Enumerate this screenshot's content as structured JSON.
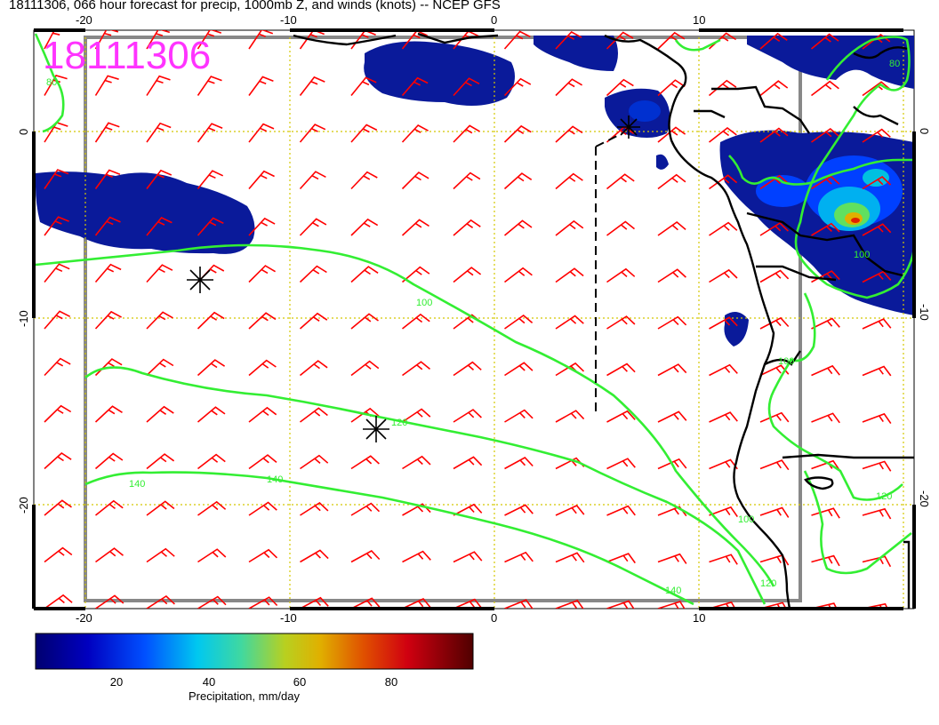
{
  "title": "18111306, 066 hour forecast for precip, 1000mb Z, and winds (knots) -- NCEP GFS",
  "stamp": "18111306",
  "map": {
    "lon_ticks": [
      "-20",
      "-10",
      "0",
      "10"
    ],
    "lat_ticks": [
      "0",
      "-10",
      "-20"
    ],
    "contour_labels": [
      "100",
      "120",
      "140",
      "140",
      "140",
      "120",
      "100",
      "80",
      "80",
      "100",
      "120",
      "100"
    ],
    "markers": [
      "star-marker",
      "star-marker",
      "star-marker"
    ],
    "colors": {
      "wind_barb": "#ff0000",
      "contour": "#33ee33",
      "stamp": "#ff33ff",
      "coast": "#000000",
      "precip_light": "#0a1a9a"
    }
  },
  "colorbar": {
    "label": "Precipitation, mm/day",
    "ticks": [
      "20",
      "40",
      "60",
      "80"
    ],
    "colors": [
      "#000080",
      "#0000cd",
      "#0060ff",
      "#00c8ff",
      "#00e0c0",
      "#60e060",
      "#c8d000",
      "#e09000",
      "#e03000",
      "#c00000",
      "#600000"
    ]
  }
}
